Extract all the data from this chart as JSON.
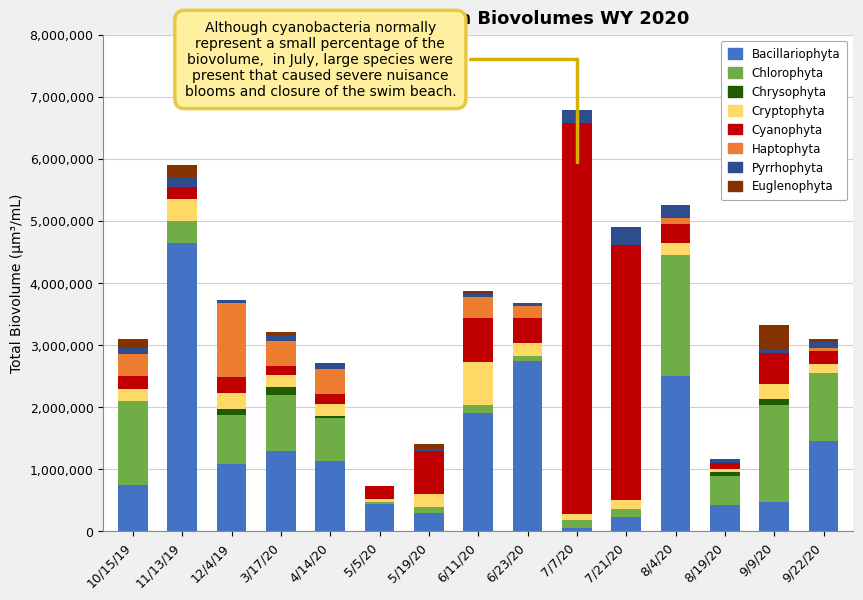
{
  "title": "Total Phytoplankton Biovolumes WY 2020",
  "ylabel": "Total Biovolume (µm³/mL)",
  "categories": [
    "10/15/19",
    "11/13/19",
    "12/4/19",
    "3/17/20",
    "4/14/20",
    "5/5/20",
    "5/19/20",
    "6/11/20",
    "6/23/20",
    "7/7/20",
    "7/21/20",
    "8/4/20",
    "8/19/20",
    "9/9/20",
    "9/22/20"
  ],
  "series": {
    "Bacillariophyta": [
      750000,
      4650000,
      1080000,
      1300000,
      1130000,
      450000,
      300000,
      1900000,
      2750000,
      50000,
      230000,
      2500000,
      420000,
      480000,
      1450000
    ],
    "Chlorophyta": [
      1350000,
      350000,
      800000,
      900000,
      700000,
      30000,
      100000,
      130000,
      80000,
      130000,
      130000,
      1950000,
      480000,
      1550000,
      1100000
    ],
    "Chrysophyta": [
      0,
      0,
      100000,
      120000,
      30000,
      0,
      0,
      0,
      0,
      0,
      0,
      0,
      60000,
      100000,
      0
    ],
    "Cryptophyta": [
      200000,
      350000,
      250000,
      200000,
      200000,
      50000,
      200000,
      700000,
      200000,
      100000,
      150000,
      200000,
      50000,
      250000,
      150000
    ],
    "Cyanophyta": [
      200000,
      200000,
      250000,
      150000,
      150000,
      200000,
      700000,
      700000,
      400000,
      6300000,
      4100000,
      300000,
      100000,
      500000,
      200000
    ],
    "Haptophyta": [
      350000,
      0,
      1200000,
      400000,
      400000,
      0,
      0,
      350000,
      200000,
      0,
      0,
      100000,
      0,
      0,
      50000
    ],
    "Pyrrhophyta": [
      100000,
      150000,
      50000,
      100000,
      100000,
      0,
      30000,
      50000,
      50000,
      200000,
      300000,
      200000,
      50000,
      50000,
      100000
    ],
    "Euglenophyta": [
      150000,
      200000,
      0,
      50000,
      0,
      0,
      80000,
      50000,
      0,
      0,
      0,
      0,
      0,
      400000,
      50000
    ]
  },
  "colors": {
    "Bacillariophyta": "#4472C4",
    "Chlorophyta": "#70AD47",
    "Chrysophyta": "#1F5C00",
    "Cryptophyta": "#FFD966",
    "Cyanophyta": "#C00000",
    "Haptophyta": "#ED7D31",
    "Pyrrhophyta": "#2E4D8E",
    "Euglenophyta": "#833200"
  },
  "ylim": [
    0,
    8000000
  ],
  "yticks": [
    0,
    1000000,
    2000000,
    3000000,
    4000000,
    5000000,
    6000000,
    7000000,
    8000000
  ],
  "annotation_text": "Although cyanobacteria normally\nrepresent a small percentage of the\nbiovolume,  in July, large species were\npresent that caused severe nuisance\nblooms and closure of the swim beach.",
  "bg_color": "#FFFFFF",
  "outer_bg": "#F0F0F0"
}
